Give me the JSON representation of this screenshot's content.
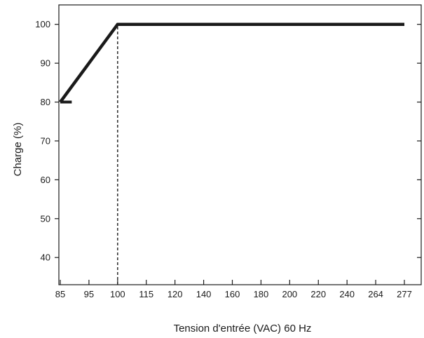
{
  "chart_data": {
    "type": "line",
    "xlabel": "Tension d'entrée (VAC) 60 Hz",
    "ylabel": "Charge (%)",
    "x_ticks": [
      "85",
      "95",
      "100",
      "115",
      "120",
      "140",
      "160",
      "180",
      "200",
      "220",
      "240",
      "264",
      "277"
    ],
    "y_ticks": [
      40,
      50,
      60,
      70,
      80,
      90,
      100
    ],
    "ylim": [
      33,
      105
    ],
    "grid": false,
    "series": [
      {
        "points": [
          {
            "x": "85",
            "y": 80
          },
          {
            "x": "100",
            "y": 100
          },
          {
            "x": "277",
            "y": 100
          }
        ]
      }
    ],
    "annotations": [
      {
        "type": "vertical-dashed-line",
        "x": "100",
        "y_from": 33,
        "y_to": 100
      },
      {
        "type": "horizontal-start-segment",
        "x_from": "85",
        "x_to": "89",
        "y": 80
      }
    ]
  }
}
